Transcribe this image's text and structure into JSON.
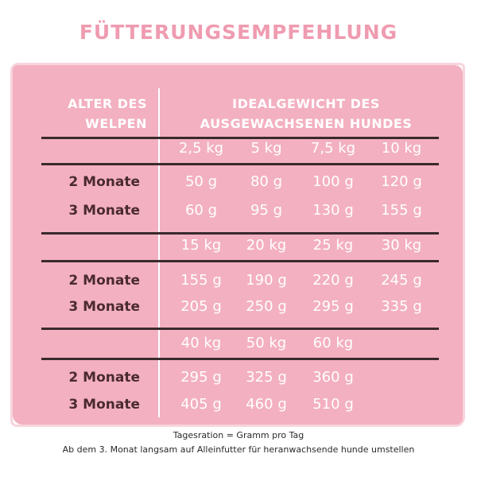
{
  "title": "FÜTTERUNGSEMPFEHLUNG",
  "header": {
    "left": [
      "ALTER DES",
      "WELPEN"
    ],
    "right": [
      "IDEALGEWICHT DES",
      "AUSGEWACHSENEN HUNDES"
    ]
  },
  "sections": [
    {
      "weights": [
        "2,5 kg",
        "5 kg",
        "7,5 kg",
        "10 kg"
      ],
      "rows": [
        {
          "age": "2 Monate",
          "values": [
            "50 g",
            "80 g",
            "100 g",
            "120 g"
          ]
        },
        {
          "age": "3 Monate",
          "values": [
            "60 g",
            "95 g",
            "130 g",
            "155 g"
          ]
        }
      ]
    },
    {
      "weights": [
        "15 kg",
        "20 kg",
        "25 kg",
        "30 kg"
      ],
      "rows": [
        {
          "age": "2 Monate",
          "values": [
            "155 g",
            "190 g",
            "220 g",
            "245 g"
          ]
        },
        {
          "age": "3 Monate",
          "values": [
            "205 g",
            "250 g",
            "295 g",
            "335 g"
          ]
        }
      ]
    },
    {
      "weights": [
        "40 kg",
        "50 kg",
        "60 kg"
      ],
      "rows": [
        {
          "age": "2 Monate",
          "values": [
            "295 g",
            "325 g",
            "360 g"
          ]
        },
        {
          "age": "3 Monate",
          "values": [
            "405 g",
            "460 g",
            "510 g"
          ]
        }
      ]
    }
  ],
  "footnotes": [
    "Tagesration = Gramm pro Tag",
    "Ab dem 3. Monat langsam auf Alleinfutter für heranwachsende hunde umstellen"
  ],
  "colors": {
    "title": "#ef9bb0",
    "card": "#f3b0c0",
    "rule": "#3a2a2d",
    "age_text": "#4a2a30"
  }
}
